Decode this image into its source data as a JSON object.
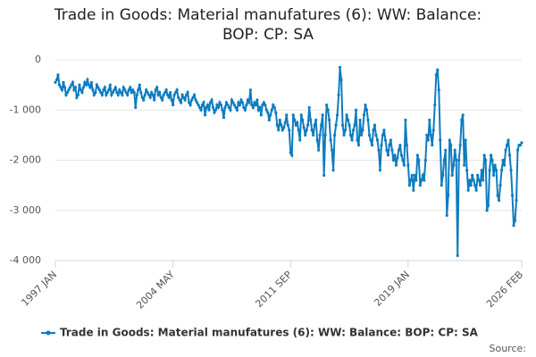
{
  "chart_data": {
    "type": "line",
    "title": "Trade in Goods: Material manufatures (6): WW: Balance: BOP: CP: SA",
    "source": "Source:",
    "categories": [
      "1997 JAN",
      null,
      null,
      null,
      null,
      null,
      null,
      null,
      null,
      null,
      null,
      null,
      null,
      null,
      null,
      null,
      null,
      null,
      null,
      null,
      null,
      null,
      null,
      null,
      null,
      null,
      null,
      null,
      null,
      null,
      null,
      null,
      null,
      null,
      null,
      null,
      null,
      null,
      null,
      null,
      null,
      null,
      null,
      null,
      null,
      null,
      null,
      null,
      null,
      null,
      null,
      null,
      null,
      null,
      null,
      null,
      null,
      null,
      null,
      null,
      null,
      null,
      null,
      null,
      null,
      null,
      null,
      null,
      null,
      null,
      null,
      null,
      null,
      null,
      null,
      null,
      null,
      null,
      null,
      null,
      null,
      null,
      null,
      null,
      null,
      null,
      null,
      null,
      "2004 MAY",
      null,
      null,
      null,
      null,
      null,
      null,
      null,
      null,
      null,
      null,
      null,
      null,
      null,
      null,
      null,
      null,
      null,
      null,
      null,
      null,
      null,
      null,
      null,
      null,
      null,
      null,
      null,
      null,
      null,
      null,
      null,
      null,
      null,
      null,
      null,
      null,
      null,
      null,
      null,
      null,
      null,
      null,
      null,
      null,
      null,
      null,
      null,
      null,
      null,
      null,
      null,
      null,
      null,
      null,
      null,
      null,
      null,
      null,
      null,
      null,
      null,
      null,
      null,
      null,
      null,
      null,
      null,
      null,
      null,
      null,
      null,
      null,
      null,
      null,
      null,
      null,
      null,
      null,
      null,
      null,
      null,
      null,
      null,
      null,
      null,
      null,
      null,
      "2011 SEP",
      null,
      null,
      null,
      null,
      null,
      null,
      null,
      null,
      null,
      null,
      null,
      null,
      null,
      null,
      null,
      null,
      null,
      null,
      null,
      null,
      null,
      null,
      null,
      null,
      null,
      null,
      null,
      null,
      null,
      null,
      null,
      null,
      null,
      null,
      null,
      null,
      null,
      null,
      null,
      null,
      null,
      null,
      null,
      null,
      null,
      null,
      null,
      null,
      null,
      null,
      null,
      null,
      null,
      null,
      null,
      null,
      null,
      null,
      null,
      null,
      null,
      null,
      null,
      null,
      null,
      null,
      null,
      null,
      null,
      null,
      null,
      null,
      null,
      null,
      null,
      null,
      null,
      null,
      null,
      null,
      null,
      null,
      null,
      null,
      null,
      null,
      null,
      "2019 JAN",
      null,
      null,
      null,
      null,
      null,
      null,
      null,
      null,
      null,
      null,
      null,
      null,
      null,
      null,
      null,
      null,
      null,
      null,
      null,
      null,
      null,
      null,
      null,
      null,
      null,
      null,
      null,
      null,
      null,
      null,
      null,
      null,
      null,
      null,
      null,
      null,
      null,
      null,
      null,
      null,
      null,
      null,
      null,
      null,
      null,
      null,
      null,
      null,
      null,
      null,
      null,
      null,
      null,
      null,
      null,
      null,
      null,
      null,
      null,
      null,
      null,
      null,
      null,
      null,
      null,
      null,
      null,
      null,
      null,
      null,
      null,
      null,
      null,
      null,
      null,
      null,
      null,
      null,
      null,
      null,
      null,
      null,
      null,
      null,
      "2026 FEB"
    ],
    "series": [
      {
        "name": "Trade in Goods: Material manufatures (6): WW: Balance: BOP: CP: SA",
        "color": "#0f7cbf",
        "values": [
          -450,
          -400,
          -300,
          -500,
          -550,
          -600,
          -450,
          -550,
          -700,
          -650,
          -600,
          -550,
          -500,
          -450,
          -600,
          -550,
          -750,
          -700,
          -500,
          -600,
          -650,
          -550,
          -450,
          -500,
          -400,
          -500,
          -550,
          -450,
          -600,
          -700,
          -650,
          -500,
          -550,
          -600,
          -650,
          -700,
          -600,
          -550,
          -700,
          -650,
          -600,
          -500,
          -700,
          -650,
          -600,
          -550,
          -650,
          -700,
          -600,
          -650,
          -700,
          -550,
          -600,
          -650,
          -700,
          -600,
          -550,
          -650,
          -600,
          -650,
          -950,
          -700,
          -600,
          -500,
          -650,
          -750,
          -800,
          -700,
          -600,
          -650,
          -700,
          -750,
          -650,
          -700,
          -800,
          -600,
          -550,
          -700,
          -650,
          -750,
          -800,
          -700,
          -650,
          -600,
          -700,
          -750,
          -650,
          -800,
          -900,
          -700,
          -650,
          -600,
          -750,
          -800,
          -850,
          -700,
          -750,
          -800,
          -700,
          -650,
          -850,
          -900,
          -800,
          -750,
          -700,
          -800,
          -850,
          -900,
          -950,
          -1000,
          -900,
          -850,
          -1100,
          -950,
          -900,
          -1000,
          -850,
          -800,
          -950,
          -1050,
          -1000,
          -900,
          -950,
          -850,
          -900,
          -1000,
          -1150,
          -950,
          -850,
          -900,
          -950,
          -1000,
          -800,
          -850,
          -900,
          -950,
          -1000,
          -850,
          -900,
          -800,
          -850,
          -950,
          -1000,
          -900,
          -800,
          -850,
          -600,
          -900,
          -950,
          -850,
          -900,
          -800,
          -1000,
          -950,
          -1100,
          -900,
          -850,
          -900,
          -1000,
          -1050,
          -1200,
          -1100,
          -1000,
          -900,
          -950,
          -1050,
          -1300,
          -1400,
          -1200,
          -1300,
          -1400,
          -1350,
          -1250,
          -1100,
          -1300,
          -1400,
          -1850,
          -1900,
          -1100,
          -1200,
          -1300,
          -1250,
          -1400,
          -1600,
          -1100,
          -1200,
          -1350,
          -1500,
          -1400,
          -1300,
          -950,
          -1200,
          -1400,
          -1500,
          -1300,
          -1200,
          -1600,
          -1800,
          -1500,
          -1300,
          -1100,
          -2300,
          -1500,
          -900,
          -1000,
          -1200,
          -1600,
          -1800,
          -2200,
          -1500,
          -1300,
          -1100,
          -700,
          -150,
          -400,
          -1300,
          -1500,
          -1400,
          -1100,
          -1200,
          -1300,
          -1500,
          -1600,
          -1400,
          -1300,
          -1000,
          -1600,
          -1700,
          -1200,
          -1500,
          -1400,
          -1100,
          -900,
          -1000,
          -1200,
          -1500,
          -1600,
          -1700,
          -1400,
          -1300,
          -1500,
          -1600,
          -1800,
          -2200,
          -1700,
          -1500,
          -1400,
          -1600,
          -1800,
          -1900,
          -1700,
          -1600,
          -1800,
          -2000,
          -1900,
          -2100,
          -1950,
          -1800,
          -1700,
          -1900,
          -2000,
          -2100,
          -1200,
          -1700,
          -2100,
          -2500,
          -2400,
          -2300,
          -2600,
          -2300,
          -2400,
          -1900,
          -2000,
          -2500,
          -2400,
          -2300,
          -2400,
          -2000,
          -1500,
          -1600,
          -1200,
          -1500,
          -1700,
          -1400,
          -900,
          -300,
          -200,
          -600,
          -1600,
          -2500,
          -2300,
          -2000,
          -1800,
          -3100,
          -2700,
          -1600,
          -1700,
          -2300,
          -2100,
          -1800,
          -2000,
          -3900,
          -2000,
          -1700,
          -1200,
          -1100,
          -2100,
          -1600,
          -2200,
          -2600,
          -2400,
          -2500,
          -2300,
          -2400,
          -2500,
          -2600,
          -2300,
          -2400,
          -2500,
          -2200,
          -2400,
          -1900,
          -2000,
          -3000,
          -2900,
          -2200,
          -1900,
          -2000,
          -2300,
          -2100,
          -2200,
          -2700,
          -2800,
          -2500,
          -2200,
          -2000,
          -2100,
          -1800,
          -1700,
          -1600,
          -1900,
          -2200,
          -2700,
          -3300,
          -3200,
          -2800,
          -1800,
          -1700,
          -1700,
          -1650
        ]
      }
    ],
    "ylim": [
      -4000,
      0
    ],
    "yticks": [
      0,
      {
        "value": -1000,
        "label": "-1 000"
      },
      {
        "value": -2000,
        "label": "-2 000"
      },
      {
        "value": -3000,
        "label": "-3 000"
      },
      {
        "value": -4000,
        "label": "-4 000"
      }
    ],
    "grid": true,
    "legend": "bottom"
  }
}
